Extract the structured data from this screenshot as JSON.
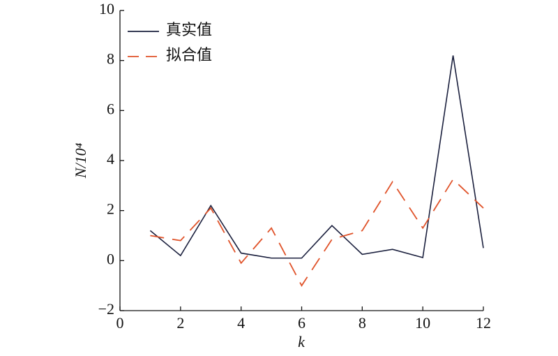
{
  "chart_data": {
    "type": "line",
    "x": [
      1,
      2,
      3,
      4,
      5,
      6,
      7,
      8,
      9,
      10,
      11,
      12
    ],
    "series": [
      {
        "name": "真实值",
        "color": "#1a1f3d",
        "dash": "solid",
        "values": [
          1.2,
          0.2,
          2.2,
          0.3,
          0.1,
          0.1,
          1.4,
          0.25,
          0.45,
          0.12,
          8.2,
          0.5
        ]
      },
      {
        "name": "拟合值",
        "color": "#e0532a",
        "dash": "dashed",
        "values": [
          1.0,
          0.8,
          2.1,
          -0.1,
          1.3,
          -1.0,
          0.85,
          1.2,
          3.15,
          1.3,
          3.25,
          2.1
        ]
      }
    ],
    "xlabel": "k",
    "ylabel": "N/10⁴",
    "xlim": [
      0,
      12
    ],
    "xticks": [
      0,
      2,
      4,
      6,
      8,
      10,
      12
    ],
    "ylim": [
      -2,
      10
    ],
    "yticks": [
      {
        "value": -2,
        "label": "−2"
      },
      0,
      2,
      4,
      6,
      8,
      10
    ],
    "legend": "upper left",
    "grid": false
  }
}
